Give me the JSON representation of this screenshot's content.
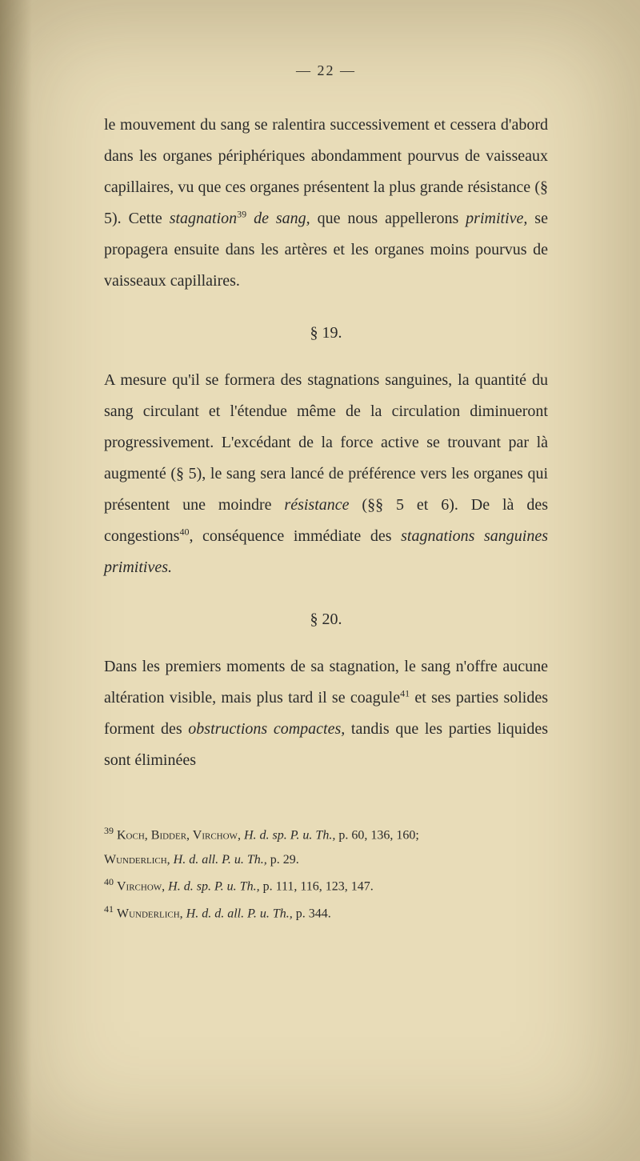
{
  "page": {
    "number_display": "— 22 —",
    "background_color": "#e8dcb8",
    "text_color": "#2a2a2a",
    "body_fontsize": 20,
    "footnote_fontsize": 16,
    "line_height": 1.95
  },
  "paragraphs": {
    "p1_a": "le mouvement du sang se ralentira successivement et cessera d'abord dans les organes périphériques abon­damment pourvus de vaisseaux capillaires, vu que ces organes présentent la plus grande résistance (§ 5). Cette ",
    "p1_b_italic": "stagnation",
    "p1_b_sup": "39",
    "p1_c": " ",
    "p1_d_italic": "de sang,",
    "p1_e": " que nous appellerons ",
    "p1_f_italic": "primitive,",
    "p1_g": " se propagera ensuite dans les artères et les organes moins pourvus de vaisseaux capillaires.",
    "section19": "§ 19.",
    "p2_a": "A mesure qu'il se formera des stagnations sanguines, la quantité du sang circulant et l'étendue même de la circulation diminueront progressivement. L'excédant de la force active se trouvant par là augmenté (§ 5), le sang sera lancé de préférence vers les organes qui pré­sentent une moindre ",
    "p2_b_italic": "résistance",
    "p2_c": " (§§ 5 et 6). De là des congestions",
    "p2_sup": "40",
    "p2_d": ", conséquence immédiate des ",
    "p2_e_italic": "stagnations sanguines primitives.",
    "section20": "§ 20.",
    "p3_a": "Dans les premiers moments de sa stagnation, le sang n'offre aucune altération visible, mais plus tard il se coagule",
    "p3_sup": "41",
    "p3_b": " et ses parties solides forment des ",
    "p3_c_italic": "obstructions compactes,",
    "p3_d": " tandis que les parties liquides sont éliminées"
  },
  "footnotes": {
    "fn1_sup": "39",
    "fn1_a": " ",
    "fn1_names": "Koch, Bidder, Virchow",
    "fn1_b": ", ",
    "fn1_c_italic": "H. d. sp. P. u. Th.,",
    "fn1_d": " p. 60, 136, 160;",
    "fn2_names": "Wunderlich",
    "fn2_a": ", ",
    "fn2_b_italic": "H. d. all. P. u. Th.,",
    "fn2_c": " p. 29.",
    "fn3_sup": "40",
    "fn3_a": " ",
    "fn3_names": "Virchow",
    "fn3_b": ", ",
    "fn3_c_italic": "H. d. sp. P. u. Th.,",
    "fn3_d": " p. 111, 116, 123, 147.",
    "fn4_sup": "41",
    "fn4_a": " ",
    "fn4_names": "Wunderlich",
    "fn4_b": ", ",
    "fn4_c_italic": "H. d. d. all. P. u. Th.,",
    "fn4_d": " p. 344."
  }
}
